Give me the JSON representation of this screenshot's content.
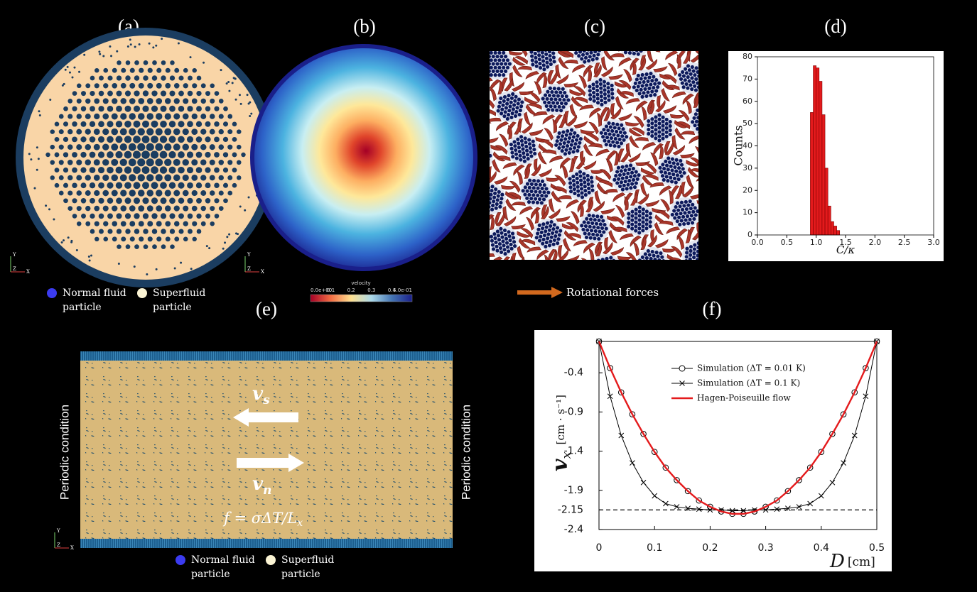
{
  "panel_labels": [
    "(a)",
    "(b)",
    "(c)",
    "(d)",
    "(e)",
    "(f)"
  ],
  "axis_triad": [
    "Y",
    "Z",
    "X"
  ],
  "legend_particles": [
    "Normal fluid particle",
    "Superfluid particle"
  ],
  "colorbar": {
    "title": "velocity",
    "ticks": [
      "0.0e+00",
      "0.1",
      "0.2",
      "0.3",
      "0.4",
      "5.0e-01"
    ]
  },
  "rotational_forces": "Rotational forces",
  "periodic_condition": "Periodic condition",
  "flow": {
    "vs": {
      "symbol": "v",
      "subscript": "s"
    },
    "vn": {
      "symbol": "v",
      "subscript": "n"
    },
    "force": {
      "text": "f = σΔT/L",
      "subscript": "x"
    }
  },
  "chart_data": [
    {
      "type": "histogram",
      "bins": [
        0.9,
        0.95,
        1.0,
        1.05,
        1.1,
        1.15,
        1.2,
        1.25,
        1.3,
        1.35,
        1.4
      ],
      "values": [
        55,
        76,
        75,
        69,
        54,
        30,
        13,
        6,
        4,
        2
      ],
      "color": "#e31a1c",
      "xlim": [
        0,
        3
      ],
      "ylim": [
        0,
        80
      ],
      "xticks": [
        {
          "value": 0,
          "label": "0.0"
        },
        0.5,
        {
          "value": 1,
          "label": "1.0"
        },
        1.5,
        {
          "value": 2,
          "label": "2.0"
        },
        2.5,
        {
          "value": 3,
          "label": "3.0"
        }
      ],
      "yticks": [
        0,
        10,
        20,
        30,
        40,
        50,
        60,
        70,
        80
      ],
      "xlabel": "C/κ",
      "ylabel": "Counts"
    },
    {
      "type": "line",
      "x": [
        0,
        0.02,
        0.04,
        0.06,
        0.08,
        0.1,
        0.12,
        0.14,
        0.16,
        0.18,
        0.2,
        0.22,
        0.24,
        0.26,
        0.28,
        0.3,
        0.32,
        0.34,
        0.36,
        0.38,
        0.4,
        0.42,
        0.44,
        0.46,
        0.48,
        0.5
      ],
      "series": [
        {
          "name": "Simulation (ΔT = 0.01 K)",
          "color": "#000000",
          "marker": "circle",
          "values": [
            0,
            -0.34,
            -0.65,
            -0.93,
            -1.18,
            -1.41,
            -1.61,
            -1.77,
            -1.91,
            -2.03,
            -2.11,
            -2.17,
            -2.2,
            -2.2,
            -2.17,
            -2.11,
            -2.03,
            -1.91,
            -1.77,
            -1.61,
            -1.41,
            -1.18,
            -0.93,
            -0.65,
            -0.34,
            0
          ]
        },
        {
          "name": "Simulation (ΔT =   0.1 K)",
          "color": "#000000",
          "marker": "x",
          "values": [
            0,
            -0.7,
            -1.2,
            -1.55,
            -1.8,
            -1.97,
            -2.07,
            -2.11,
            -2.13,
            -2.14,
            -2.15,
            -2.15,
            -2.16,
            -2.16,
            -2.15,
            -2.15,
            -2.14,
            -2.13,
            -2.11,
            -2.07,
            -1.97,
            -1.8,
            -1.55,
            -1.2,
            -0.7,
            0
          ]
        },
        {
          "name": "Hagen-Poiseuille flow",
          "color": "#e41a1c",
          "values": [
            0,
            -0.34,
            -0.65,
            -0.93,
            -1.18,
            -1.41,
            -1.61,
            -1.77,
            -1.91,
            -2.03,
            -2.11,
            -2.17,
            -2.2,
            -2.2,
            -2.17,
            -2.11,
            -2.03,
            -1.91,
            -1.77,
            -1.61,
            -1.41,
            -1.18,
            -0.93,
            -0.65,
            -0.34,
            0
          ]
        }
      ],
      "xlim": [
        0,
        0.5
      ],
      "ylim": [
        -2.4,
        0
      ],
      "xticks": [
        0,
        0.1,
        0.2,
        0.3,
        0.4,
        0.5
      ],
      "yticks": [
        -0.4,
        -0.9,
        -1.4,
        -1.9,
        -2.15,
        -2.4
      ],
      "reference_line": -2.15,
      "xlabel": "D",
      "xunit": "[cm]",
      "ylabel": "v",
      "ysub": "x",
      "yunit": "[cm · s⁻¹]"
    }
  ]
}
